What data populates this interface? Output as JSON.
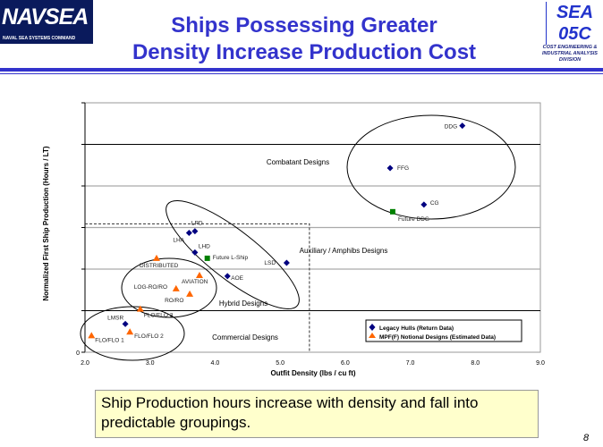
{
  "header": {
    "title_line1": "Ships Possessing Greater",
    "title_line2": "Density Increase Production Cost",
    "left_logo": {
      "text": "NAVSEA",
      "subtext": "NAVAL SEA SYSTEMS COMMAND"
    },
    "right_logo": {
      "text_line1": "SEA",
      "text_line2": "05C",
      "subtext": [
        "COST ENGINEERING &",
        "INDUSTRIAL ANALYSIS",
        "DIVISION"
      ]
    },
    "accent_color": "#3333cc"
  },
  "chart_data": {
    "type": "scatter",
    "title": "",
    "xlabel": "Outfit Density (lbs / cu ft)",
    "ylabel": "Normalized First Ship Production (Hours / LT)",
    "xlim": [
      2.0,
      9.0
    ],
    "ylim": [
      0,
      6
    ],
    "x_ticks": [
      "2.0",
      "3.0",
      "4.0",
      "5.0",
      "6.0",
      "7.0",
      "8.0",
      "9.0"
    ],
    "y_ticks": [
      "0"
    ],
    "grid": "horizontal",
    "legend_position": "bottom-right",
    "series": [
      {
        "name": "Legacy Hulls (Return Data)",
        "marker": "diamond",
        "color": "#000080",
        "points": [
          {
            "label": "DDG",
            "x": 7.8,
            "y": 5.45
          },
          {
            "label": "FFG",
            "x": 6.69,
            "y": 4.43
          },
          {
            "label": "CG",
            "x": 7.21,
            "y": 3.55
          },
          {
            "label": "LPD",
            "x": 3.69,
            "y": 2.91
          },
          {
            "label": "LHA",
            "x": 3.6,
            "y": 2.87
          },
          {
            "label": "LHD",
            "x": 3.69,
            "y": 2.4
          },
          {
            "label": "LSD",
            "x": 5.1,
            "y": 2.15
          },
          {
            "label": "AOE",
            "x": 4.19,
            "y": 1.83
          },
          {
            "label": "LMSR",
            "x": 2.62,
            "y": 0.68
          }
        ]
      },
      {
        "name": "MPF(F) Notional Designs (Estimated Data)",
        "marker": "triangle",
        "color": "#ff6600",
        "points": [
          {
            "label": "DISTRIBUTED",
            "x": 3.1,
            "y": 2.26
          },
          {
            "label": "AVIATION",
            "x": 3.76,
            "y": 1.85
          },
          {
            "label": "LOG-RO/RO",
            "x": 3.4,
            "y": 1.53
          },
          {
            "label": "RO/RO",
            "x": 3.61,
            "y": 1.4
          },
          {
            "label": "FLO/FLO 3",
            "x": 2.85,
            "y": 1.04
          },
          {
            "label": "FLO/FLO 2",
            "x": 2.69,
            "y": 0.49
          },
          {
            "label": "FLO/FLO 1",
            "x": 2.1,
            "y": 0.4
          }
        ]
      },
      {
        "marker": "square",
        "color": "#008000",
        "points": [
          {
            "label": "Future DDG",
            "x": 6.73,
            "y": 3.38
          },
          {
            "label": "Future L-Ship",
            "x": 3.88,
            "y": 2.26
          }
        ]
      }
    ],
    "annotations": [
      "Combatant Designs",
      "Auxiliary / Amphibs Designs",
      "Hybrid Designs",
      "Commercial Designs"
    ]
  },
  "callout": "Ship Production hours increase with density and fall into predictable groupings.",
  "page_number": "8"
}
